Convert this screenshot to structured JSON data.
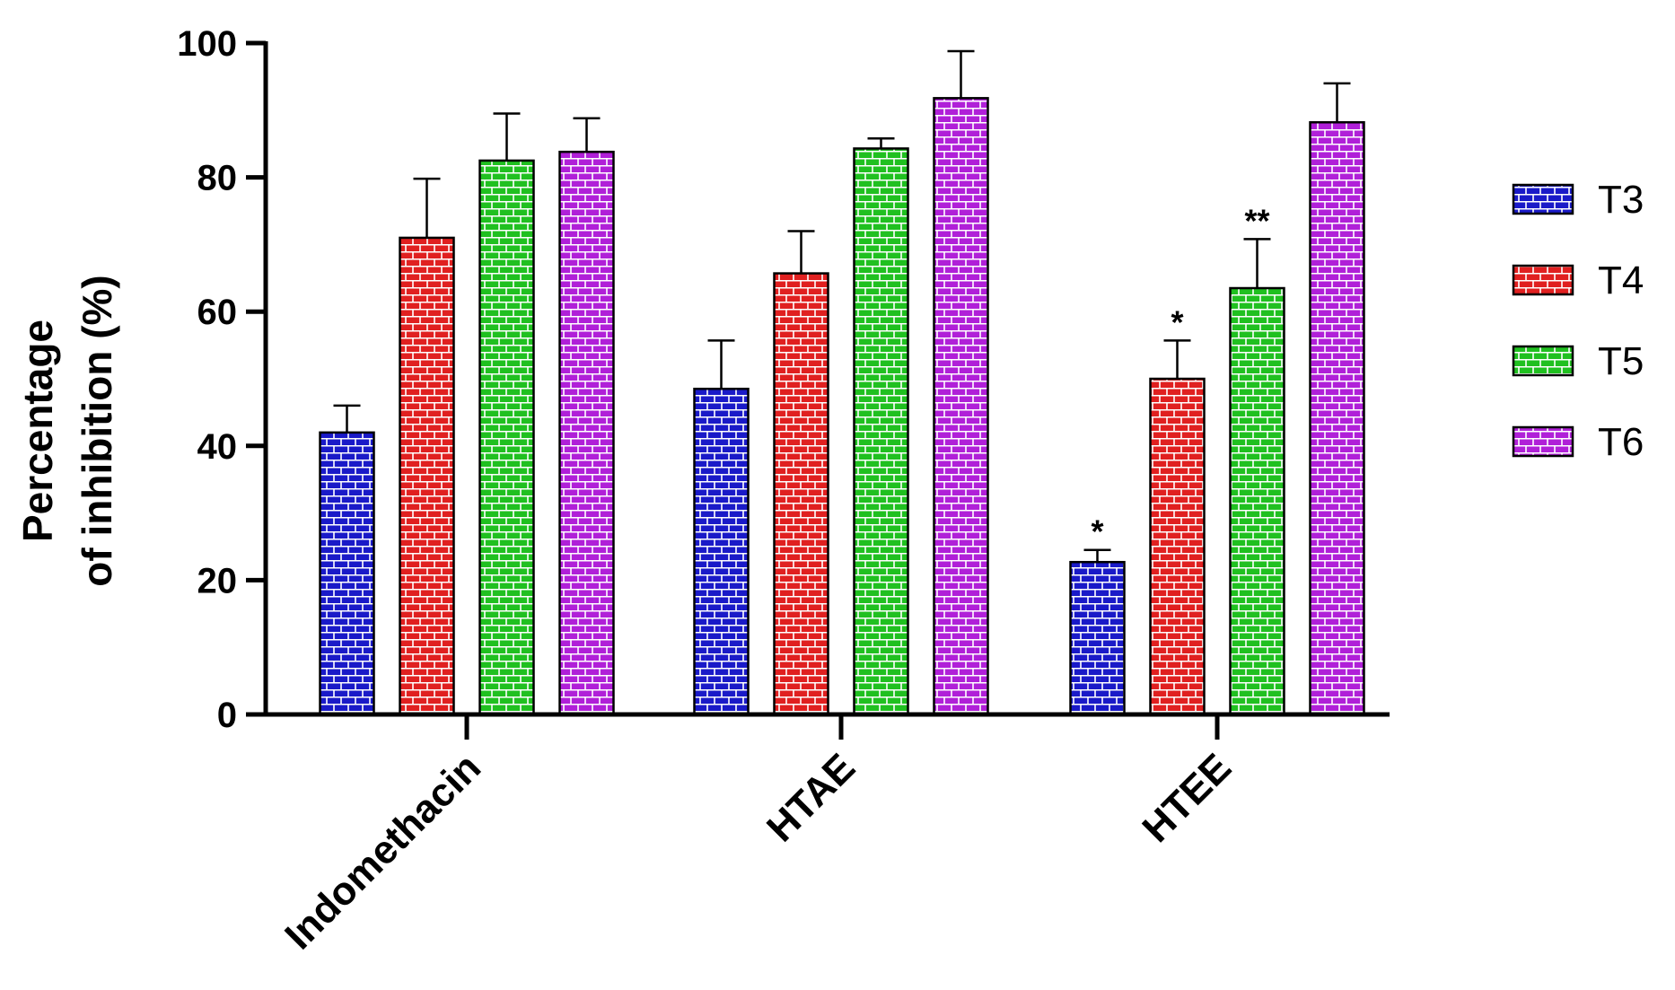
{
  "chart_data": {
    "type": "bar",
    "title": "",
    "xlabel": "",
    "ylabel_line1": "Percentage",
    "ylabel_line2": "of inhibition (%)",
    "ylim": [
      0,
      100
    ],
    "yticks": [
      0,
      20,
      40,
      60,
      80,
      100
    ],
    "categories": [
      "Indomethacin",
      "HTAE",
      "HTEE"
    ],
    "series": [
      {
        "name": "T3",
        "color": "#1a1ac8",
        "values": [
          42,
          48.5,
          22.7
        ],
        "errors": [
          4,
          7.2,
          1.8
        ],
        "significance": [
          "",
          "",
          "*"
        ]
      },
      {
        "name": "T4",
        "color": "#e02020",
        "values": [
          71,
          65.7,
          50
        ],
        "errors": [
          8.8,
          6.3,
          5.7
        ],
        "significance": [
          "",
          "",
          "*"
        ]
      },
      {
        "name": "T5",
        "color": "#20c020",
        "values": [
          82.5,
          84.3,
          63.5
        ],
        "errors": [
          7,
          1.5,
          7.3
        ],
        "significance": [
          "",
          "",
          "**"
        ]
      },
      {
        "name": "T6",
        "color": "#b020d8",
        "values": [
          83.8,
          91.8,
          88.2
        ],
        "errors": [
          5,
          7,
          5.8
        ],
        "significance": [
          "",
          "",
          ""
        ]
      }
    ],
    "legend_position": "right",
    "grid": false
  }
}
